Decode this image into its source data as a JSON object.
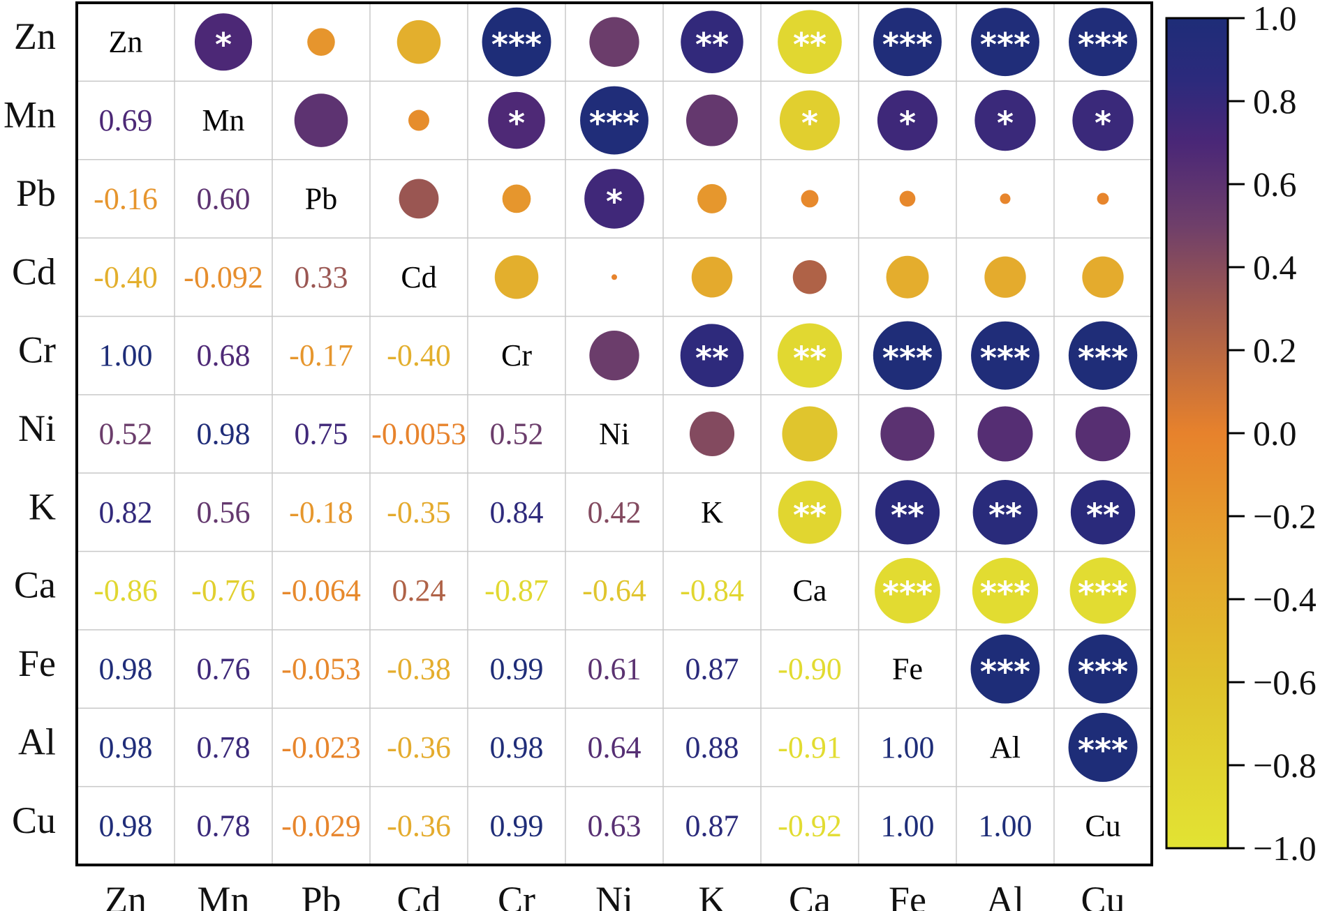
{
  "chart_data": {
    "type": "heatmap",
    "subtype": "correlation-matrix",
    "title": "",
    "variables": [
      "Zn",
      "Mn",
      "Pb",
      "Cd",
      "Cr",
      "Ni",
      "K",
      "Ca",
      "Fe",
      "Al",
      "Cu"
    ],
    "lower_triangle_labels": [
      [
        "Zn",
        "",
        "",
        "",
        "",
        "",
        "",
        "",
        "",
        "",
        ""
      ],
      [
        "0.69",
        "Mn",
        "",
        "",
        "",
        "",
        "",
        "",
        "",
        "",
        ""
      ],
      [
        "-0.16",
        "0.60",
        "Pb",
        "",
        "",
        "",
        "",
        "",
        "",
        "",
        ""
      ],
      [
        "-0.40",
        "-0.092",
        "0.33",
        "Cd",
        "",
        "",
        "",
        "",
        "",
        "",
        ""
      ],
      [
        "1.00",
        "0.68",
        "-0.17",
        "-0.40",
        "Cr",
        "",
        "",
        "",
        "",
        "",
        ""
      ],
      [
        "0.52",
        "0.98",
        "0.75",
        "-0.0053",
        "0.52",
        "Ni",
        "",
        "",
        "",
        "",
        ""
      ],
      [
        "0.82",
        "0.56",
        "-0.18",
        "-0.35",
        "0.84",
        "0.42",
        "K",
        "",
        "",
        "",
        ""
      ],
      [
        "-0.86",
        "-0.76",
        "-0.064",
        "0.24",
        "-0.87",
        "-0.64",
        "-0.84",
        "Ca",
        "",
        "",
        ""
      ],
      [
        "0.98",
        "0.76",
        "-0.053",
        "-0.38",
        "0.99",
        "0.61",
        "0.87",
        "-0.90",
        "Fe",
        "",
        ""
      ],
      [
        "0.98",
        "0.78",
        "-0.023",
        "-0.36",
        "0.98",
        "0.64",
        "0.88",
        "-0.91",
        "1.00",
        "Al",
        ""
      ],
      [
        "0.98",
        "0.78",
        "-0.029",
        "-0.36",
        "0.99",
        "0.63",
        "0.87",
        "-0.92",
        "1.00",
        "1.00",
        "Cu"
      ]
    ],
    "matrix": [
      [
        1.0,
        0.69,
        -0.16,
        -0.4,
        1.0,
        0.52,
        0.82,
        -0.86,
        0.98,
        0.98,
        0.98
      ],
      [
        0.69,
        1.0,
        0.6,
        -0.092,
        0.68,
        0.98,
        0.56,
        -0.76,
        0.76,
        0.78,
        0.78
      ],
      [
        -0.16,
        0.6,
        1.0,
        0.33,
        -0.17,
        0.75,
        -0.18,
        -0.064,
        -0.053,
        -0.023,
        -0.029
      ],
      [
        -0.4,
        -0.092,
        0.33,
        1.0,
        -0.4,
        -0.0053,
        -0.35,
        0.24,
        -0.38,
        -0.36,
        -0.36
      ],
      [
        1.0,
        0.68,
        -0.17,
        -0.4,
        1.0,
        0.52,
        0.84,
        -0.87,
        0.99,
        0.98,
        0.99
      ],
      [
        0.52,
        0.98,
        0.75,
        -0.0053,
        0.52,
        1.0,
        0.42,
        -0.64,
        0.61,
        0.64,
        0.63
      ],
      [
        0.82,
        0.56,
        -0.18,
        -0.35,
        0.84,
        0.42,
        1.0,
        -0.84,
        0.87,
        0.88,
        0.87
      ],
      [
        -0.86,
        -0.76,
        -0.064,
        0.24,
        -0.87,
        -0.64,
        -0.84,
        1.0,
        -0.9,
        -0.91,
        -0.92
      ],
      [
        0.98,
        0.76,
        -0.053,
        -0.38,
        0.99,
        0.61,
        0.87,
        -0.9,
        1.0,
        1.0,
        1.0
      ],
      [
        0.98,
        0.78,
        -0.023,
        -0.36,
        0.98,
        0.64,
        0.88,
        -0.91,
        1.0,
        1.0,
        1.0
      ],
      [
        0.98,
        0.78,
        -0.029,
        -0.36,
        0.99,
        0.63,
        0.87,
        -0.92,
        1.0,
        1.0,
        1.0
      ]
    ],
    "significance": [
      [
        "",
        "*",
        "",
        "",
        "***",
        "",
        "**",
        "**",
        "***",
        "***",
        "***"
      ],
      [
        "",
        "",
        "",
        "",
        "*",
        "***",
        "",
        "*",
        "*",
        "*",
        "*"
      ],
      [
        "",
        "",
        "",
        "",
        "",
        "*",
        "",
        "",
        "",
        "",
        ""
      ],
      [
        "",
        "",
        "",
        "",
        "",
        "",
        "",
        "",
        "",
        "",
        ""
      ],
      [
        "",
        "",
        "",
        "",
        "",
        "",
        "**",
        "**",
        "***",
        "***",
        "***"
      ],
      [
        "",
        "",
        "",
        "",
        "",
        "",
        "",
        "",
        "",
        "",
        ""
      ],
      [
        "",
        "",
        "",
        "",
        "",
        "",
        "",
        "**",
        "**",
        "**",
        "**"
      ],
      [
        "",
        "",
        "",
        "",
        "",
        "",
        "",
        "",
        "***",
        "***",
        "***"
      ],
      [
        "",
        "",
        "",
        "",
        "",
        "",
        "",
        "",
        "",
        "***",
        "***"
      ],
      [
        "",
        "",
        "",
        "",
        "",
        "",
        "",
        "",
        "",
        "",
        "***"
      ],
      [
        "",
        "",
        "",
        "",
        "",
        "",
        "",
        "",
        "",
        "",
        ""
      ]
    ],
    "colorbar": {
      "range": [
        -1.0,
        1.0
      ],
      "ticks": [
        "1.0",
        "0.8",
        "0.6",
        "0.4",
        "0.2",
        "0.0",
        "−0.2",
        "−0.4",
        "−0.6",
        "−0.8",
        "−1.0"
      ],
      "tick_values": [
        1.0,
        0.8,
        0.6,
        0.4,
        0.2,
        0.0,
        -0.2,
        -0.4,
        -0.6,
        -0.8,
        -1.0
      ],
      "color_stops": [
        {
          "value": -1.0,
          "color": "#e2e333"
        },
        {
          "value": -0.6,
          "color": "#e0c22c"
        },
        {
          "value": -0.3,
          "color": "#e5a52d"
        },
        {
          "value": 0.0,
          "color": "#e7822c"
        },
        {
          "value": 0.3,
          "color": "#a15a4e"
        },
        {
          "value": 0.5,
          "color": "#6f3f6a"
        },
        {
          "value": 0.7,
          "color": "#4a2777"
        },
        {
          "value": 0.85,
          "color": "#2c2a7c"
        },
        {
          "value": 1.0,
          "color": "#1e2d78"
        }
      ],
      "placement": "right"
    },
    "upper_triangle_encoding": "circle size and color by correlation; stars mark significance",
    "lower_triangle_encoding": "correlation value text colored by correlation",
    "diagonal_encoding": "variable name",
    "xlabel": "",
    "ylabel": ""
  }
}
